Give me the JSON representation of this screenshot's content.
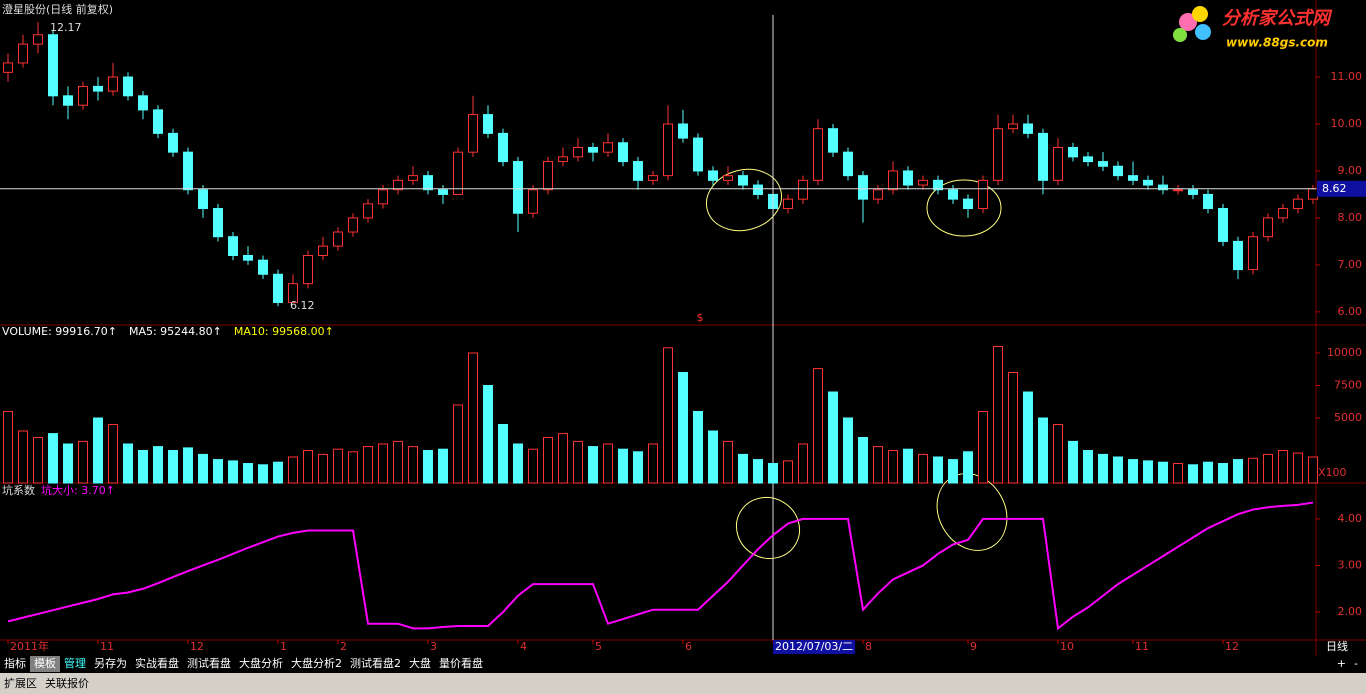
{
  "chart_data": [
    {
      "type": "candlestick",
      "title": "澄星股份(日线 前复权)",
      "up_color": "#ff3232",
      "down_color": "#54ffff",
      "ylim": [
        5.72,
        12.64
      ],
      "yticks": [
        {
          "value": 6,
          "label": "6.00"
        },
        {
          "value": 7,
          "label": "7.00"
        },
        {
          "value": 8,
          "label": "8.00"
        },
        {
          "value": 9,
          "label": "9.00"
        },
        {
          "value": 10,
          "label": "10.00"
        },
        {
          "value": 11,
          "label": "11.00"
        }
      ],
      "high_mark": 12.17,
      "low_mark": 6.12,
      "marker": "$",
      "cursor": {
        "x": 51,
        "y": 8.62
      },
      "ohlc": [
        [
          11.1,
          11.5,
          10.9,
          11.3
        ],
        [
          11.3,
          11.9,
          11.2,
          11.7
        ],
        [
          11.7,
          12.17,
          11.5,
          11.9
        ],
        [
          11.9,
          12.0,
          10.4,
          10.6
        ],
        [
          10.6,
          10.8,
          10.1,
          10.4
        ],
        [
          10.4,
          10.9,
          10.3,
          10.8
        ],
        [
          10.8,
          11.0,
          10.5,
          10.7
        ],
        [
          10.7,
          11.3,
          10.6,
          11.0
        ],
        [
          11.0,
          11.1,
          10.5,
          10.6
        ],
        [
          10.6,
          10.7,
          10.1,
          10.3
        ],
        [
          10.3,
          10.4,
          9.7,
          9.8
        ],
        [
          9.8,
          9.9,
          9.3,
          9.4
        ],
        [
          9.4,
          9.5,
          8.5,
          8.6
        ],
        [
          8.6,
          8.7,
          8.0,
          8.2
        ],
        [
          8.2,
          8.3,
          7.5,
          7.6
        ],
        [
          7.6,
          7.7,
          7.1,
          7.2
        ],
        [
          7.2,
          7.4,
          7.0,
          7.1
        ],
        [
          7.1,
          7.2,
          6.7,
          6.8
        ],
        [
          6.8,
          6.9,
          6.12,
          6.2
        ],
        [
          6.2,
          6.8,
          6.2,
          6.6
        ],
        [
          6.6,
          7.3,
          6.5,
          7.2
        ],
        [
          7.2,
          7.6,
          7.1,
          7.4
        ],
        [
          7.4,
          7.8,
          7.3,
          7.7
        ],
        [
          7.7,
          8.1,
          7.6,
          8.0
        ],
        [
          8.0,
          8.4,
          7.9,
          8.3
        ],
        [
          8.3,
          8.7,
          8.2,
          8.6
        ],
        [
          8.6,
          8.9,
          8.5,
          8.8
        ],
        [
          8.8,
          9.1,
          8.7,
          8.9
        ],
        [
          8.9,
          9.0,
          8.5,
          8.6
        ],
        [
          8.6,
          8.7,
          8.3,
          8.5
        ],
        [
          8.5,
          9.5,
          8.5,
          9.4
        ],
        [
          9.4,
          10.6,
          9.3,
          10.2
        ],
        [
          10.2,
          10.4,
          9.7,
          9.8
        ],
        [
          9.8,
          9.9,
          9.1,
          9.2
        ],
        [
          9.2,
          9.3,
          7.7,
          8.1
        ],
        [
          8.1,
          8.7,
          8.0,
          8.6
        ],
        [
          8.6,
          9.3,
          8.5,
          9.2
        ],
        [
          9.2,
          9.5,
          9.1,
          9.3
        ],
        [
          9.3,
          9.7,
          9.2,
          9.5
        ],
        [
          9.5,
          9.6,
          9.2,
          9.4
        ],
        [
          9.4,
          9.8,
          9.3,
          9.6
        ],
        [
          9.6,
          9.7,
          9.1,
          9.2
        ],
        [
          9.2,
          9.3,
          8.6,
          8.8
        ],
        [
          8.8,
          9.0,
          8.7,
          8.9
        ],
        [
          8.9,
          10.4,
          8.8,
          10.0
        ],
        [
          10.0,
          10.3,
          9.6,
          9.7
        ],
        [
          9.7,
          9.8,
          8.9,
          9.0
        ],
        [
          9.0,
          9.1,
          8.7,
          8.8
        ],
        [
          8.8,
          9.1,
          8.7,
          8.9
        ],
        [
          8.9,
          9.0,
          8.6,
          8.7
        ],
        [
          8.7,
          8.8,
          8.4,
          8.5
        ],
        [
          8.5,
          8.6,
          8.0,
          8.2
        ],
        [
          8.2,
          8.5,
          8.1,
          8.4
        ],
        [
          8.4,
          8.9,
          8.3,
          8.8
        ],
        [
          8.8,
          10.1,
          8.7,
          9.9
        ],
        [
          9.9,
          10.0,
          9.3,
          9.4
        ],
        [
          9.4,
          9.5,
          8.8,
          8.9
        ],
        [
          8.9,
          9.0,
          7.9,
          8.4
        ],
        [
          8.4,
          8.7,
          8.3,
          8.6
        ],
        [
          8.6,
          9.2,
          8.5,
          9.0
        ],
        [
          9.0,
          9.1,
          8.6,
          8.7
        ],
        [
          8.7,
          8.9,
          8.6,
          8.8
        ],
        [
          8.8,
          8.9,
          8.5,
          8.6
        ],
        [
          8.6,
          8.7,
          8.3,
          8.4
        ],
        [
          8.4,
          8.5,
          8.0,
          8.2
        ],
        [
          8.2,
          8.9,
          8.1,
          8.8
        ],
        [
          8.8,
          10.2,
          8.7,
          9.9
        ],
        [
          9.9,
          10.2,
          9.8,
          10.0
        ],
        [
          10.0,
          10.2,
          9.7,
          9.8
        ],
        [
          9.8,
          9.9,
          8.5,
          8.8
        ],
        [
          8.8,
          9.7,
          8.7,
          9.5
        ],
        [
          9.5,
          9.6,
          9.2,
          9.3
        ],
        [
          9.3,
          9.4,
          9.1,
          9.2
        ],
        [
          9.2,
          9.4,
          9.0,
          9.1
        ],
        [
          9.1,
          9.2,
          8.8,
          8.9
        ],
        [
          8.9,
          9.2,
          8.7,
          8.8
        ],
        [
          8.8,
          8.9,
          8.6,
          8.7
        ],
        [
          8.7,
          8.9,
          8.5,
          8.6
        ],
        [
          8.6,
          8.7,
          8.5,
          8.6
        ],
        [
          8.6,
          8.7,
          8.4,
          8.5
        ],
        [
          8.5,
          8.6,
          8.1,
          8.2
        ],
        [
          8.2,
          8.3,
          7.4,
          7.5
        ],
        [
          7.5,
          7.6,
          6.7,
          6.9
        ],
        [
          6.9,
          7.7,
          6.8,
          7.6
        ],
        [
          7.6,
          8.1,
          7.5,
          8.0
        ],
        [
          8.0,
          8.3,
          7.9,
          8.2
        ],
        [
          8.2,
          8.5,
          8.1,
          8.4
        ],
        [
          8.4,
          8.7,
          8.3,
          8.62
        ]
      ]
    },
    {
      "type": "bar",
      "legend": [
        {
          "text": "VOLUME: 99916.70↑",
          "color": "#ffffff"
        },
        {
          "text": "MA5: 95244.80↑",
          "color": "#ffffff"
        },
        {
          "text": "MA10: 99568.00↑",
          "color": "#ffff00"
        }
      ],
      "unit_label": "X100",
      "ylim": [
        0,
        11000
      ],
      "yticks": [
        5000,
        7500,
        10000
      ],
      "values": [
        5500,
        4000,
        3500,
        3800,
        3000,
        3200,
        5000,
        4500,
        3000,
        2500,
        2800,
        2500,
        2700,
        2200,
        1800,
        1700,
        1500,
        1400,
        1600,
        2000,
        2500,
        2200,
        2600,
        2400,
        2800,
        3000,
        3200,
        2800,
        2500,
        2600,
        6000,
        10000,
        7500,
        4500,
        3000,
        2600,
        3500,
        3800,
        3200,
        2800,
        3000,
        2600,
        2400,
        3000,
        10400,
        8500,
        5500,
        4000,
        3200,
        2200,
        1800,
        1500,
        1700,
        3000,
        8800,
        7000,
        5000,
        3500,
        2800,
        2500,
        2600,
        2200,
        2000,
        1800,
        2400,
        5500,
        10500,
        8500,
        7000,
        5000,
        4500,
        3200,
        2500,
        2200,
        2000,
        1800,
        1700,
        1600,
        1500,
        1400,
        1600,
        1500,
        1800,
        1900,
        2200,
        2500,
        2300,
        2000
      ]
    },
    {
      "type": "line",
      "title": "坑系数",
      "legend": "坑大小: 3.70↑",
      "color": "#ff00ff",
      "period_label": "日线",
      "ylim": [
        1.4,
        4.77
      ],
      "yticks": [
        {
          "value": 2,
          "label": "2.00"
        },
        {
          "value": 3,
          "label": "3.00"
        },
        {
          "value": 4,
          "label": "4.00"
        }
      ],
      "xticks": [
        {
          "value": 0,
          "label": "2011年"
        },
        {
          "value": 6,
          "label": "11"
        },
        {
          "value": 12,
          "label": "12"
        },
        {
          "value": 18,
          "label": "1"
        },
        {
          "value": 22,
          "label": "2"
        },
        {
          "value": 28,
          "label": "3"
        },
        {
          "value": 34,
          "label": "4"
        },
        {
          "value": 39,
          "label": "5"
        },
        {
          "value": 45,
          "label": "6"
        },
        {
          "value": 51,
          "label": "2012/07/03/二"
        },
        {
          "value": 57,
          "label": "8"
        },
        {
          "value": 64,
          "label": "9"
        },
        {
          "value": 70,
          "label": "10"
        },
        {
          "value": 75,
          "label": "11"
        },
        {
          "value": 81,
          "label": "12"
        }
      ],
      "values": [
        1.8,
        1.88,
        1.96,
        2.04,
        2.12,
        2.2,
        2.28,
        2.38,
        2.42,
        2.5,
        2.62,
        2.75,
        2.88,
        3.0,
        3.12,
        3.25,
        3.38,
        3.5,
        3.62,
        3.7,
        3.75,
        3.75,
        3.75,
        3.75,
        1.75,
        1.75,
        1.75,
        1.65,
        1.65,
        1.68,
        1.7,
        1.7,
        1.7,
        2.0,
        2.35,
        2.6,
        2.6,
        2.6,
        2.6,
        2.6,
        1.75,
        1.85,
        1.95,
        2.05,
        2.05,
        2.05,
        2.05,
        2.35,
        2.65,
        3.0,
        3.35,
        3.65,
        3.9,
        4.0,
        4.0,
        4.0,
        4.0,
        2.05,
        2.4,
        2.7,
        2.85,
        3.0,
        3.25,
        3.45,
        3.55,
        4.0,
        4.0,
        4.0,
        4.0,
        4.0,
        1.65,
        1.9,
        2.1,
        2.35,
        2.6,
        2.8,
        3.0,
        3.2,
        3.4,
        3.6,
        3.8,
        3.95,
        4.1,
        4.2,
        4.25,
        4.28,
        4.3,
        4.35
      ]
    }
  ],
  "logo": {
    "name": "分析家公式网",
    "url": "www.88gs.com"
  },
  "toolbar": {
    "tabs": [
      "指标",
      "模板",
      "管理",
      "另存为",
      "实战看盘",
      "测试看盘",
      "大盘分析",
      "大盘分析2",
      "测试看盘2",
      "大盘",
      "量价看盘"
    ],
    "controls": [
      "+",
      "-"
    ]
  },
  "bottom_bar": {
    "tabs": [
      "扩展区",
      "关联报价"
    ]
  }
}
